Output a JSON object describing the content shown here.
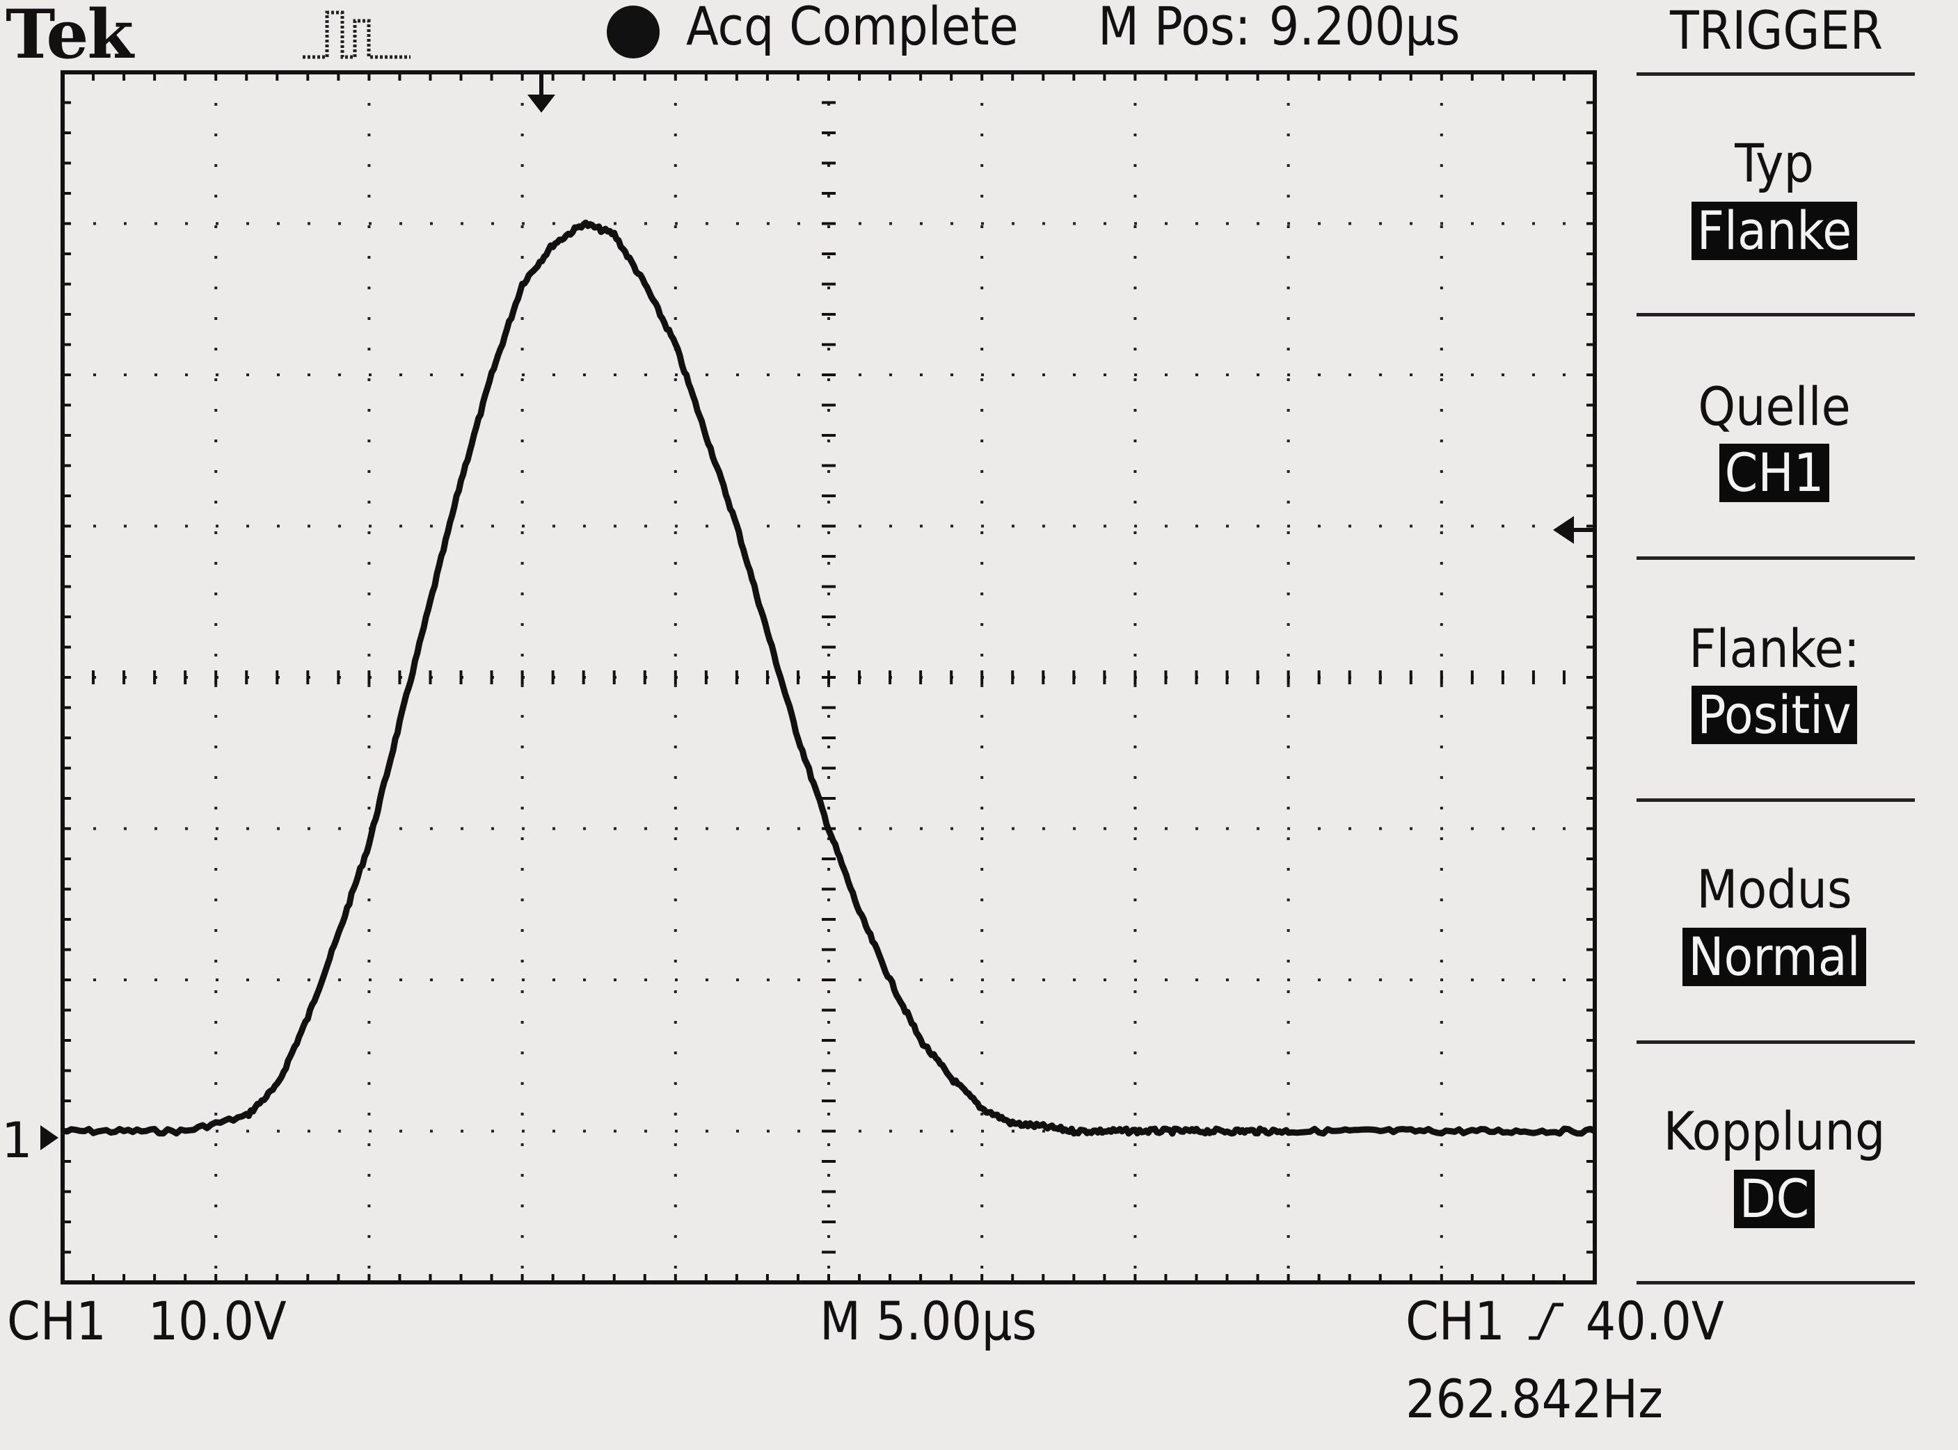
{
  "header": {
    "brand": "Tek",
    "status_icon": "pulse-run-icon",
    "acquisition_status": "Acq Complete",
    "m_pos_label": "M Pos:",
    "m_pos_value": "9.200µs",
    "menu_title": "TRIGGER"
  },
  "trigger_menu": [
    {
      "label": "Typ",
      "value": "Flanke"
    },
    {
      "label": "Quelle",
      "value": "CH1"
    },
    {
      "label": "Flanke:",
      "value": "Positiv"
    },
    {
      "label": "Modus",
      "value": "Normal"
    },
    {
      "label": "Kopplung",
      "value": "DC"
    }
  ],
  "footer": {
    "channel": "CH1",
    "volts_per_div": "10.0V",
    "timebase": "M 5.00µs",
    "trigger_source": "CH1",
    "trigger_slope_icon": "rising-edge-icon",
    "trigger_level": "40.0V",
    "frequency": "262.842Hz"
  },
  "markers": {
    "channel_ground_label": "1",
    "trigger_position_icon": "trigger-position-arrow-icon",
    "trigger_level_icon": "trigger-level-arrow-icon"
  },
  "colors": {
    "background": "#ecebea",
    "trace": "#111111",
    "highlight_bg": "#0b0b0b",
    "highlight_fg": "#f3f3f3"
  },
  "chart_data": {
    "type": "line",
    "x_unit": "µs",
    "y_unit": "V",
    "xlim": [
      0,
      50
    ],
    "ylim": [
      -10,
      70
    ],
    "grid": true,
    "series": [
      {
        "x": [
          0,
          2,
          4,
          6,
          7,
          8,
          9,
          10,
          11,
          12,
          13,
          14,
          15,
          16,
          17,
          18,
          19,
          20,
          21,
          22,
          23,
          24,
          25,
          26,
          27,
          28,
          29,
          30,
          31,
          32,
          33,
          34,
          35,
          36,
          37,
          38,
          39,
          40,
          42,
          44,
          46,
          48,
          50
        ],
        "y": [
          0,
          0,
          0,
          1,
          3,
          7.5,
          13,
          19,
          27,
          35,
          43,
          50,
          56,
          58.6,
          60,
          59.3,
          56,
          52,
          46,
          40,
          33,
          26,
          20,
          14.5,
          10,
          6,
          3.5,
          1.5,
          0.5,
          0.3,
          0,
          0,
          0,
          0,
          0,
          0,
          0,
          0,
          0,
          0,
          0,
          0,
          0
        ]
      }
    ]
  }
}
